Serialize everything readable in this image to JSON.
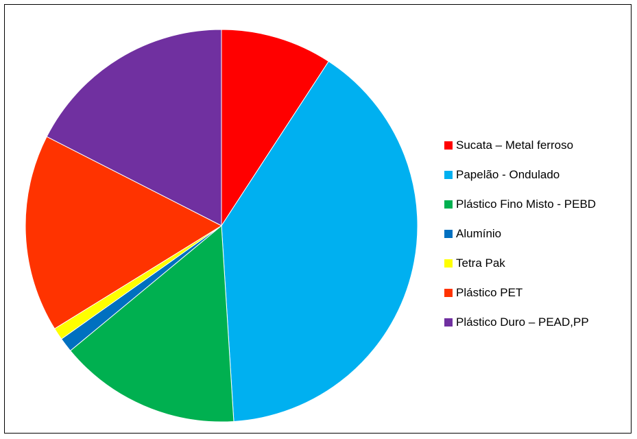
{
  "chart_data": {
    "type": "pie",
    "title": "",
    "slices": [
      {
        "label": "Sucata – Metal ferroso",
        "value": 9.2,
        "color": "#FF0000"
      },
      {
        "label": "Papelão - Ondulado",
        "value": 39.8,
        "color": "#00B0F0"
      },
      {
        "label": "Plástico Fino Misto - PEBD",
        "value": 15.0,
        "color": "#00B050"
      },
      {
        "label": "Alumínio",
        "value": 1.2,
        "color": "#0070C0"
      },
      {
        "label": "Tetra Pak",
        "value": 1.0,
        "color": "#FFFF00"
      },
      {
        "label": "Plástico PET",
        "value": 16.3,
        "color": "#FF3300"
      },
      {
        "label": "Plástico Duro – PEAD,PP",
        "value": 17.5,
        "color": "#7030A0"
      }
    ],
    "legend_position": "right",
    "start": "top",
    "direction": "clockwise"
  }
}
